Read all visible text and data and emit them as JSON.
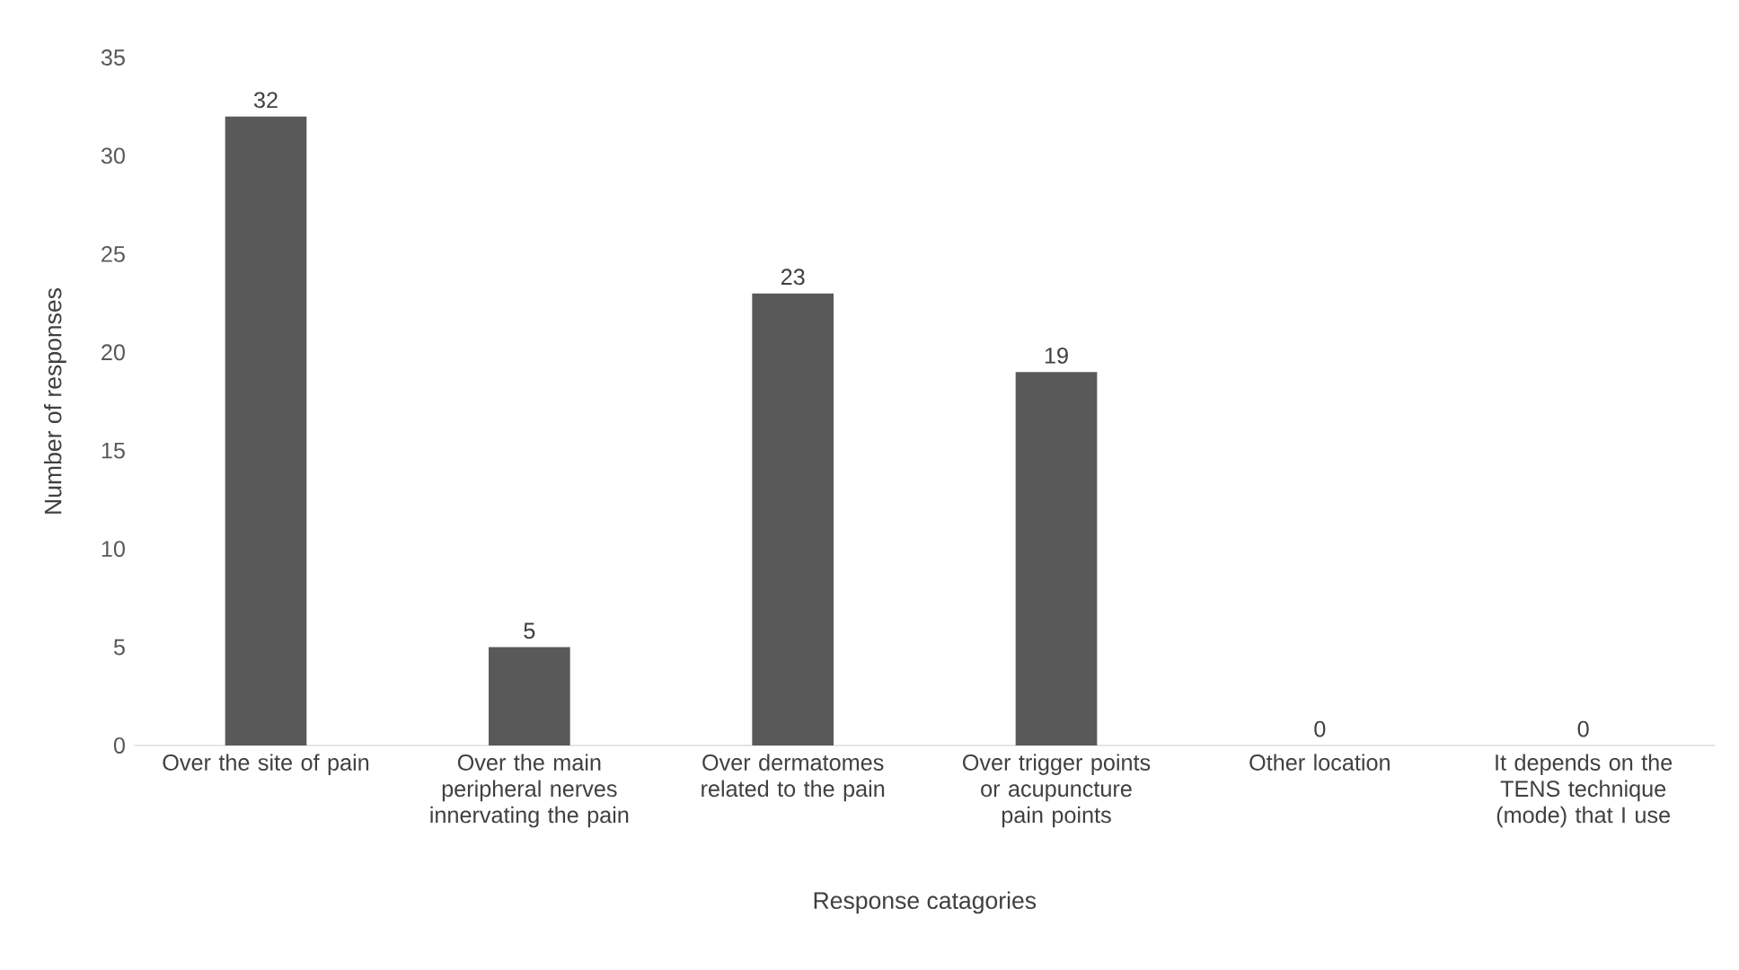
{
  "chart_data": {
    "type": "bar",
    "xlabel": "Response catagories",
    "ylabel": "Number of responses",
    "categories": [
      "Over the site of pain",
      "Over the main peripheral nerves innervating the pain",
      "Over dermatomes related to the pain",
      "Over trigger points or acupuncture pain points",
      "Other location",
      "It depends on the TENS technique (mode) that I use"
    ],
    "values": [
      32,
      5,
      23,
      19,
      0,
      0
    ],
    "color": "#595959",
    "ylim": [
      0,
      35
    ],
    "yticks": [
      0,
      5,
      10,
      15,
      20,
      25,
      30,
      35
    ],
    "data_labels": true
  }
}
